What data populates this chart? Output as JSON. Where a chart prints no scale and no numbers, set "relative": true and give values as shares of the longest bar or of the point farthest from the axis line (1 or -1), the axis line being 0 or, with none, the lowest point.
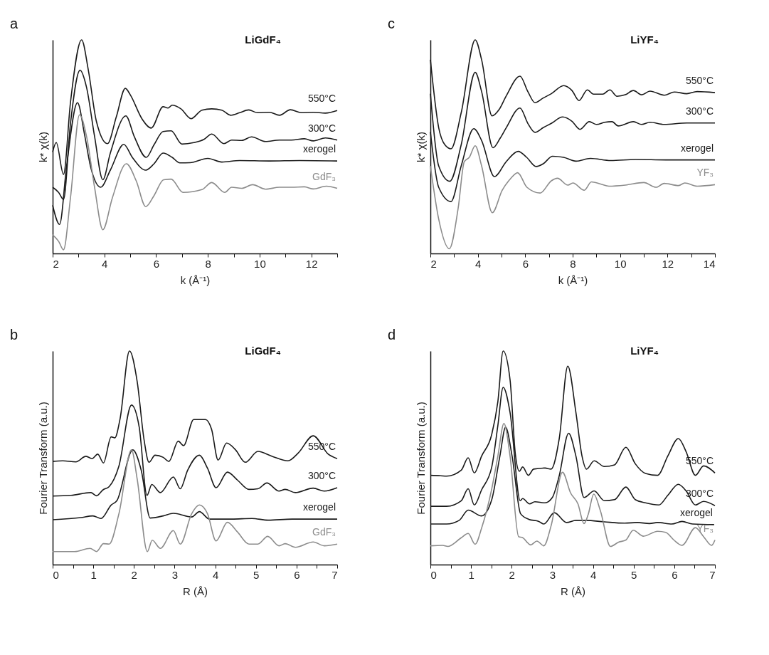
{
  "chart_data": [
    {
      "type": "line",
      "title": "LiGdF₄",
      "annotations": [
        "a"
      ],
      "xlabel": "k (Å⁻¹)",
      "ylabel": "k* χ(k)",
      "relative": true,
      "tick_labels": "x",
      "xlim": [
        2,
        13
      ],
      "xticks": [
        2,
        {
          "value": 3,
          "label": null
        },
        4,
        {
          "value": 5,
          "label": null
        },
        6,
        {
          "value": 7,
          "label": null
        },
        8,
        {
          "value": 9,
          "label": null
        },
        10,
        {
          "value": 11,
          "label": null
        },
        12,
        {
          "value": 13,
          "label": null
        }
      ],
      "series": [
        {
          "name": "550°C",
          "color": "#1a1a1a",
          "x": [
            2.0,
            2.14,
            2.42,
            2.69,
            3.12,
            3.38,
            3.69,
            4.12,
            4.46,
            4.81,
            5.0,
            5.46,
            5.81,
            6.27,
            6.46,
            6.62,
            6.96,
            7.35,
            7.77,
            8.15,
            8.54,
            8.88,
            9.23,
            9.58,
            9.92,
            10.38,
            10.77,
            11.19,
            11.62,
            12.08,
            12.54,
            13.0
          ],
          "values": [
            0.475,
            0.519,
            0.37,
            0.708,
            1.0,
            0.858,
            0.619,
            0.514,
            0.639,
            0.773,
            0.743,
            0.629,
            0.587,
            0.687,
            0.681,
            0.694,
            0.677,
            0.631,
            0.671,
            0.677,
            0.671,
            0.647,
            0.659,
            0.672,
            0.659,
            0.661,
            0.647,
            0.673,
            0.659,
            0.661,
            0.657,
            0.669
          ]
        },
        {
          "name": "300°C",
          "color": "#1a1a1a",
          "x": [
            2.0,
            2.23,
            2.42,
            2.69,
            3.06,
            3.31,
            3.62,
            3.94,
            4.23,
            4.83,
            5.15,
            5.62,
            5.92,
            6.27,
            6.58,
            7.0,
            7.46,
            7.85,
            8.15,
            8.62,
            8.92,
            9.31,
            9.69,
            10.23,
            10.77,
            11.23,
            11.73,
            12.08,
            12.54,
            13.0
          ],
          "values": [
            0.31,
            0.286,
            0.253,
            0.609,
            0.858,
            0.778,
            0.549,
            0.345,
            0.47,
            0.644,
            0.549,
            0.45,
            0.509,
            0.571,
            0.574,
            0.512,
            0.519,
            0.534,
            0.559,
            0.514,
            0.531,
            0.529,
            0.546,
            0.524,
            0.531,
            0.531,
            0.537,
            0.527,
            0.541,
            0.531
          ]
        },
        {
          "name": "xerogel",
          "color": "#1a1a1a",
          "x": [
            2.0,
            2.27,
            2.54,
            2.96,
            3.23,
            3.46,
            3.86,
            4.23,
            4.75,
            5.08,
            5.6,
            5.92,
            6.27,
            6.62,
            6.92,
            7.31,
            8.0,
            8.54,
            9.23,
            10.38,
            11.54,
            13.0
          ],
          "values": [
            0.226,
            0.136,
            0.41,
            0.706,
            0.559,
            0.41,
            0.31,
            0.39,
            0.511,
            0.45,
            0.39,
            0.42,
            0.47,
            0.45,
            0.424,
            0.425,
            0.445,
            0.428,
            0.435,
            0.433,
            0.435,
            0.433
          ]
        },
        {
          "name": "GdF₃",
          "color": "#8c8c8c",
          "x": [
            2.0,
            2.23,
            2.42,
            2.69,
            3.04,
            3.31,
            3.62,
            3.94,
            4.31,
            4.85,
            5.23,
            5.6,
            5.92,
            6.29,
            6.58,
            7.04,
            7.77,
            8.15,
            8.65,
            8.92,
            9.31,
            9.73,
            10.23,
            10.77,
            11.23,
            11.73,
            12.08,
            12.58,
            13.0
          ],
          "values": [
            0.087,
            0.057,
            0.017,
            0.261,
            0.649,
            0.549,
            0.31,
            0.111,
            0.261,
            0.42,
            0.34,
            0.219,
            0.271,
            0.345,
            0.348,
            0.286,
            0.299,
            0.332,
            0.286,
            0.31,
            0.305,
            0.322,
            0.301,
            0.31,
            0.31,
            0.312,
            0.302,
            0.315,
            0.305
          ]
        }
      ]
    },
    {
      "type": "line",
      "title": "LiYF₄",
      "annotations": [
        "c"
      ],
      "xlabel": "k (Å⁻¹)",
      "ylabel": "k* χ(k)",
      "relative": true,
      "tick_labels": "x",
      "xlim": [
        2,
        14
      ],
      "xticks": [
        2,
        {
          "value": 3,
          "label": null
        },
        4,
        {
          "value": 5,
          "label": null
        },
        6,
        {
          "value": 7,
          "label": null
        },
        8,
        {
          "value": 9,
          "label": null
        },
        10,
        {
          "value": 11,
          "label": null
        },
        12,
        {
          "value": 13,
          "label": null
        },
        14
      ],
      "series": [
        {
          "name": "550°C",
          "color": "#1a1a1a",
          "x": [
            2.0,
            2.35,
            2.61,
            2.87,
            3.3,
            3.89,
            4.16,
            4.6,
            4.9,
            5.2,
            5.78,
            6.11,
            6.41,
            6.76,
            7.1,
            7.62,
            7.97,
            8.27,
            8.62,
            8.88,
            9.27,
            9.57,
            9.87,
            10.22,
            10.56,
            10.91,
            11.26,
            11.86,
            12.29,
            12.81,
            13.25,
            14.0
          ],
          "values": [
            0.907,
            0.589,
            0.509,
            0.49,
            0.659,
            1.0,
            0.907,
            0.644,
            0.674,
            0.738,
            0.83,
            0.758,
            0.706,
            0.728,
            0.748,
            0.786,
            0.763,
            0.716,
            0.766,
            0.746,
            0.746,
            0.766,
            0.736,
            0.743,
            0.763,
            0.743,
            0.76,
            0.741,
            0.756,
            0.748,
            0.758,
            0.753
          ]
        },
        {
          "name": "300°C",
          "color": "#1a1a1a",
          "x": [
            2.0,
            2.35,
            2.82,
            3.3,
            3.89,
            4.16,
            4.64,
            4.94,
            5.2,
            5.78,
            6.11,
            6.41,
            6.76,
            7.1,
            7.58,
            7.97,
            8.31,
            8.7,
            9.01,
            9.35,
            9.66,
            9.92,
            10.56,
            10.91,
            11.26,
            11.86,
            12.81,
            14.0
          ],
          "values": [
            0.748,
            0.41,
            0.338,
            0.509,
            0.848,
            0.758,
            0.495,
            0.539,
            0.589,
            0.681,
            0.609,
            0.567,
            0.589,
            0.609,
            0.639,
            0.619,
            0.581,
            0.617,
            0.604,
            0.614,
            0.617,
            0.597,
            0.617,
            0.604,
            0.614,
            0.604,
            0.611,
            0.611
          ]
        },
        {
          "name": "xerogel",
          "color": "#1a1a1a",
          "x": [
            2.0,
            2.35,
            2.87,
            3.3,
            3.83,
            4.16,
            4.7,
            5.2,
            5.7,
            6.06,
            6.46,
            6.76,
            7.15,
            7.62,
            8.14,
            8.75,
            9.61,
            10.65,
            11.94,
            14.0
          ],
          "values": [
            0.569,
            0.31,
            0.243,
            0.41,
            0.584,
            0.529,
            0.36,
            0.43,
            0.478,
            0.45,
            0.407,
            0.42,
            0.455,
            0.45,
            0.432,
            0.445,
            0.435,
            0.44,
            0.438,
            0.438
          ]
        },
        {
          "name": "YF₃",
          "color": "#8c8c8c",
          "x": [
            2.0,
            2.35,
            2.8,
            3.17,
            3.43,
            3.64,
            3.89,
            4.16,
            4.61,
            5.03,
            5.38,
            5.68,
            6.07,
            6.63,
            7.1,
            7.36,
            7.8,
            8.01,
            8.49,
            8.79,
            9.18,
            9.53,
            10.22,
            11.0,
            11.52,
            11.86,
            12.47,
            12.73,
            13.25,
            14.0
          ],
          "values": [
            0.41,
            0.161,
            0.022,
            0.211,
            0.43,
            0.45,
            0.504,
            0.41,
            0.191,
            0.296,
            0.35,
            0.378,
            0.31,
            0.283,
            0.34,
            0.352,
            0.32,
            0.33,
            0.296,
            0.335,
            0.325,
            0.315,
            0.32,
            0.332,
            0.31,
            0.328,
            0.318,
            0.33,
            0.315,
            0.322
          ]
        }
      ]
    },
    {
      "type": "line",
      "title": "LiGdF₄",
      "annotations": [
        "b"
      ],
      "xlabel": "R (Å)",
      "ylabel": "Fourier Transform (a.u.)",
      "relative": true,
      "tick_labels": "x",
      "xlim": [
        0,
        7
      ],
      "xticks": [
        0,
        {
          "value": 0.5,
          "label": null
        },
        1,
        {
          "value": 1.5,
          "label": null
        },
        2,
        {
          "value": 2.5,
          "label": null
        },
        3,
        {
          "value": 3.5,
          "label": null
        },
        4,
        {
          "value": 4.5,
          "label": null
        },
        5,
        {
          "value": 5.5,
          "label": null
        },
        6,
        {
          "value": 6.5,
          "label": null
        },
        7
      ],
      "series": [
        {
          "name": "550°C",
          "color": "#1a1a1a",
          "x": [
            0,
            0.25,
            0.57,
            0.82,
            0.97,
            1.11,
            1.25,
            1.44,
            1.53,
            1.66,
            1.89,
            2.08,
            2.25,
            2.37,
            2.52,
            2.72,
            2.86,
            3.09,
            3.22,
            3.47,
            3.76,
            3.91,
            4.07,
            4.28,
            4.5,
            4.74,
            5.05,
            5.4,
            5.79,
            6.04,
            6.41,
            6.78,
            7.0
          ],
          "values": [
            0.483,
            0.486,
            0.481,
            0.507,
            0.496,
            0.517,
            0.476,
            0.598,
            0.593,
            0.684,
            1.0,
            0.856,
            0.583,
            0.479,
            0.512,
            0.502,
            0.483,
            0.578,
            0.557,
            0.679,
            0.679,
            0.633,
            0.489,
            0.569,
            0.537,
            0.479,
            0.53,
            0.507,
            0.486,
            0.522,
            0.603,
            0.517,
            0.496
          ]
        },
        {
          "name": "300°C",
          "color": "#1a1a1a",
          "x": [
            0,
            0.45,
            0.94,
            1.08,
            1.24,
            1.39,
            1.63,
            1.94,
            2.13,
            2.32,
            2.44,
            2.65,
            2.97,
            3.14,
            3.32,
            3.61,
            3.81,
            4.02,
            4.3,
            4.55,
            4.83,
            5.05,
            5.27,
            5.57,
            5.72,
            5.97,
            6.41,
            6.68,
            7.0
          ],
          "values": [
            0.321,
            0.324,
            0.337,
            0.322,
            0.35,
            0.365,
            0.461,
            0.747,
            0.643,
            0.324,
            0.375,
            0.337,
            0.41,
            0.355,
            0.441,
            0.512,
            0.451,
            0.36,
            0.433,
            0.395,
            0.352,
            0.355,
            0.382,
            0.344,
            0.352,
            0.337,
            0.358,
            0.344,
            0.36
          ]
        },
        {
          "name": "xerogel",
          "color": "#1a1a1a",
          "x": [
            0,
            0.69,
            0.99,
            1.19,
            1.44,
            1.58,
            1.97,
            2.18,
            2.4,
            2.72,
            2.97,
            3.42,
            3.61,
            3.86,
            4.41,
            4.9,
            5.3,
            5.89,
            7.0
          ],
          "values": [
            0.21,
            0.22,
            0.228,
            0.216,
            0.279,
            0.299,
            0.537,
            0.441,
            0.218,
            0.228,
            0.24,
            0.223,
            0.248,
            0.213,
            0.213,
            0.216,
            0.208,
            0.213,
            0.213
          ]
        },
        {
          "name": "GdF₃",
          "color": "#8c8c8c",
          "x": [
            0,
            0.54,
            0.92,
            1.08,
            1.25,
            1.39,
            1.63,
            1.94,
            2.08,
            2.33,
            2.45,
            2.65,
            2.97,
            3.14,
            3.42,
            3.61,
            3.81,
            4.02,
            4.3,
            4.55,
            4.83,
            5.05,
            5.29,
            5.57,
            5.72,
            5.97,
            6.41,
            6.68,
            7.0
          ],
          "values": [
            0.061,
            0.061,
            0.076,
            0.061,
            0.098,
            0.096,
            0.238,
            0.537,
            0.4,
            0.061,
            0.114,
            0.076,
            0.159,
            0.096,
            0.238,
            0.279,
            0.238,
            0.111,
            0.198,
            0.152,
            0.096,
            0.096,
            0.132,
            0.088,
            0.098,
            0.081,
            0.106,
            0.088,
            0.096
          ]
        }
      ]
    },
    {
      "type": "line",
      "title": "LiYF₄",
      "annotations": [
        "d"
      ],
      "xlabel": "R (Å)",
      "ylabel": "Fourier Transform (a.u.)",
      "relative": true,
      "tick_labels": "x",
      "xlim": [
        0,
        7
      ],
      "xticks": [
        0,
        {
          "value": 0.5,
          "label": null
        },
        1,
        {
          "value": 1.5,
          "label": null
        },
        2,
        {
          "value": 2.5,
          "label": null
        },
        3,
        {
          "value": 3.5,
          "label": null
        },
        4,
        {
          "value": 4.5,
          "label": null
        },
        5,
        {
          "value": 5.5,
          "label": null
        },
        6,
        {
          "value": 6.5,
          "label": null
        },
        7
      ],
      "series": [
        {
          "name": "550°C",
          "color": "#1a1a1a",
          "x": [
            0,
            0.25,
            0.4,
            0.76,
            0.93,
            1.08,
            1.26,
            1.51,
            1.66,
            1.79,
            1.96,
            2.09,
            2.19,
            2.27,
            2.41,
            2.54,
            2.82,
            2.97,
            3.17,
            3.38,
            3.58,
            3.73,
            3.84,
            4.03,
            4.28,
            4.53,
            4.81,
            5.04,
            5.29,
            5.59,
            5.84,
            6.1,
            6.29,
            6.52,
            6.72,
            7.0
          ],
          "values": [
            0.418,
            0.416,
            0.414,
            0.442,
            0.5,
            0.429,
            0.508,
            0.61,
            0.763,
            1.0,
            0.865,
            0.518,
            0.437,
            0.457,
            0.418,
            0.447,
            0.452,
            0.447,
            0.59,
            0.929,
            0.712,
            0.508,
            0.447,
            0.486,
            0.459,
            0.467,
            0.549,
            0.472,
            0.427,
            0.418,
            0.508,
            0.59,
            0.529,
            0.418,
            0.462,
            0.429
          ]
        },
        {
          "name": "300°C",
          "color": "#1a1a1a",
          "x": [
            0,
            0.4,
            0.76,
            0.93,
            1.08,
            1.26,
            1.51,
            1.66,
            1.79,
            1.96,
            2.21,
            2.27,
            2.44,
            2.57,
            2.82,
            3.0,
            3.17,
            3.4,
            3.58,
            3.78,
            4.03,
            4.28,
            4.53,
            4.81,
            5.04,
            5.29,
            5.62,
            5.84,
            6.1,
            6.29,
            6.52,
            6.72,
            7.0
          ],
          "values": [
            0.273,
            0.273,
            0.299,
            0.355,
            0.279,
            0.35,
            0.457,
            0.651,
            0.83,
            0.712,
            0.299,
            0.309,
            0.284,
            0.294,
            0.289,
            0.314,
            0.416,
            0.615,
            0.508,
            0.314,
            0.345,
            0.299,
            0.304,
            0.363,
            0.304,
            0.289,
            0.279,
            0.324,
            0.376,
            0.345,
            0.279,
            0.296,
            0.276
          ]
        },
        {
          "name": "xerogel",
          "color": "#1a1a1a",
          "x": [
            0,
            0.4,
            0.71,
            0.93,
            1.26,
            1.51,
            1.71,
            1.85,
            2.01,
            2.22,
            2.42,
            2.67,
            2.79,
            3.05,
            3.35,
            3.58,
            3.83,
            4.28,
            4.78,
            5.09,
            5.39,
            5.59,
            5.94,
            6.19,
            6.45,
            6.98
          ],
          "values": [
            0.19,
            0.19,
            0.207,
            0.255,
            0.228,
            0.304,
            0.508,
            0.643,
            0.508,
            0.238,
            0.212,
            0.202,
            0.19,
            0.243,
            0.197,
            0.207,
            0.207,
            0.2,
            0.194,
            0.197,
            0.192,
            0.197,
            0.19,
            0.202,
            0.19,
            0.187
          ]
        },
        {
          "name": "YF₃",
          "color": "#8c8c8c",
          "x": [
            0,
            0.3,
            0.43,
            0.76,
            0.93,
            1.1,
            1.26,
            1.51,
            1.66,
            1.81,
            1.96,
            2.17,
            2.27,
            2.47,
            2.62,
            2.79,
            2.97,
            3.25,
            3.45,
            3.63,
            3.78,
            3.88,
            4.02,
            4.18,
            4.43,
            4.63,
            4.81,
            4.99,
            5.24,
            5.59,
            5.79,
            5.99,
            6.19,
            6.52,
            6.72,
            6.92,
            7.0
          ],
          "values": [
            0.088,
            0.09,
            0.085,
            0.126,
            0.146,
            0.095,
            0.171,
            0.355,
            0.508,
            0.661,
            0.508,
            0.131,
            0.126,
            0.092,
            0.11,
            0.088,
            0.182,
            0.432,
            0.335,
            0.284,
            0.192,
            0.233,
            0.33,
            0.253,
            0.085,
            0.105,
            0.115,
            0.161,
            0.133,
            0.156,
            0.151,
            0.115,
            0.09,
            0.173,
            0.131,
            0.09,
            0.115
          ]
        }
      ]
    }
  ]
}
